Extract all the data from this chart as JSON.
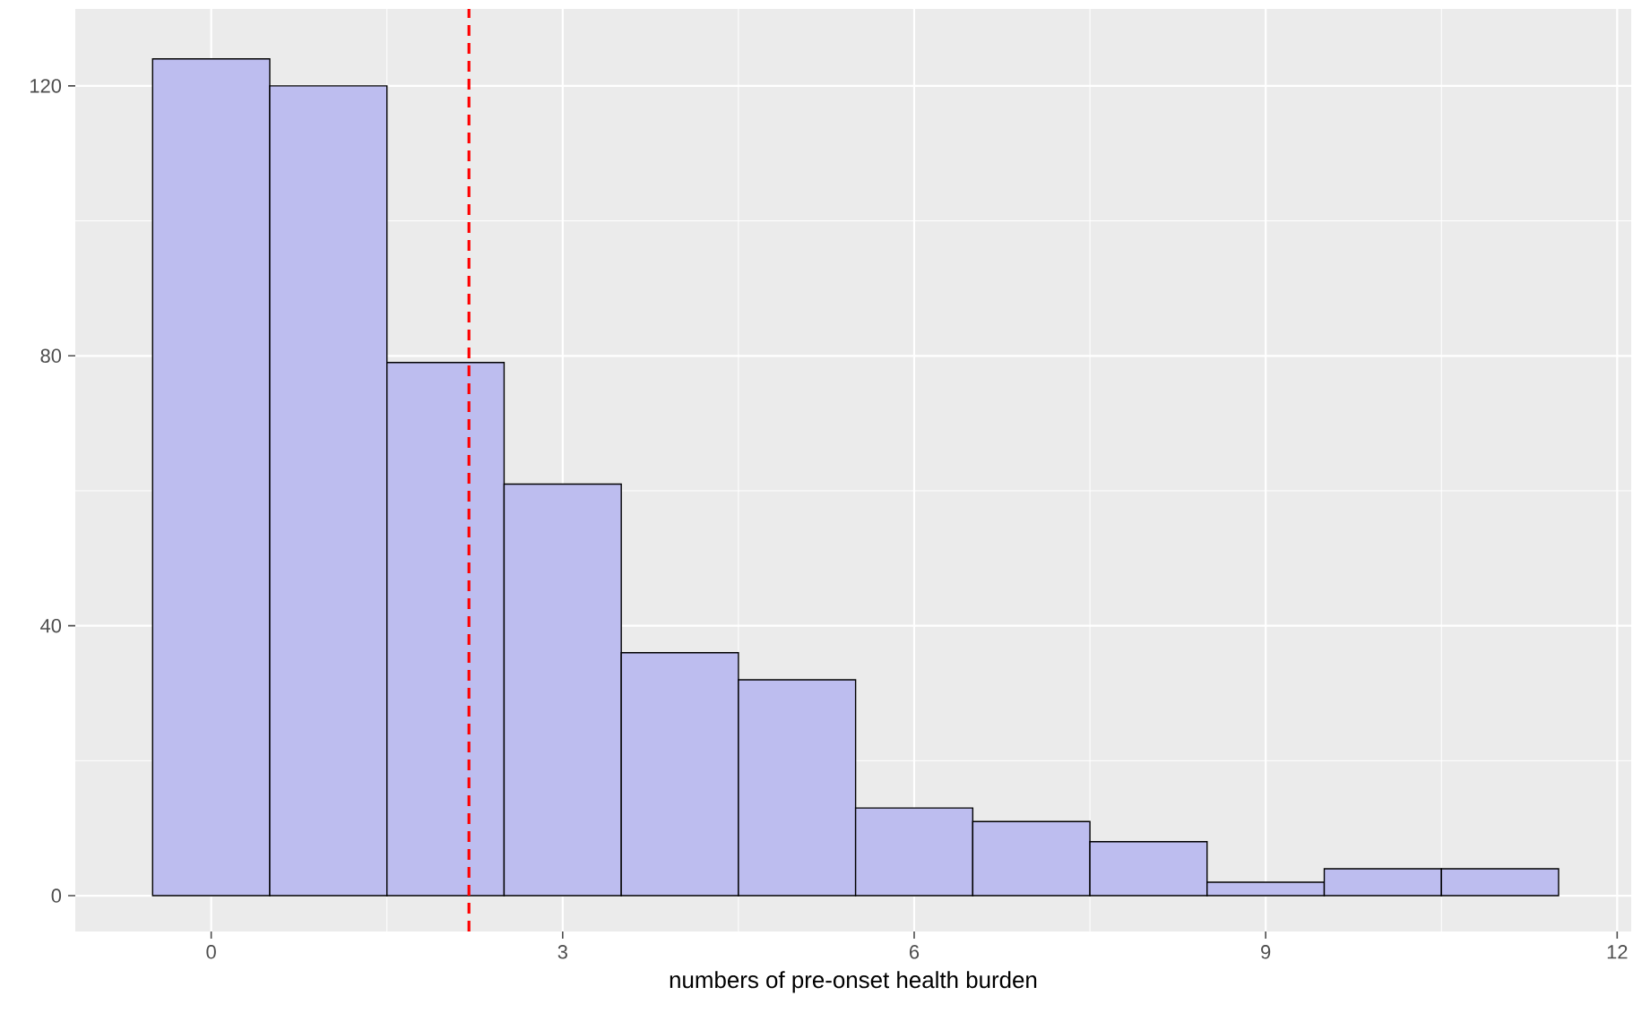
{
  "chart_data": {
    "type": "histogram",
    "xlabel": "numbers of pre-onset health burden",
    "bins": [
      -0.5,
      0.5,
      1.5,
      2.5,
      3.5,
      4.5,
      5.5,
      6.5,
      7.5,
      8.5,
      9.5,
      10.5,
      11.5
    ],
    "values": [
      124,
      120,
      79,
      61,
      36,
      32,
      13,
      11,
      8,
      2,
      4,
      4
    ],
    "color": "#bdbdef",
    "xlim": [
      -1.16,
      12.12
    ],
    "ylim": [
      -5.3,
      131.4
    ],
    "xticks": [
      0,
      3,
      6,
      9,
      12
    ],
    "yticks": [
      0,
      40,
      80,
      120
    ],
    "grid": true,
    "ref_lines": [
      {
        "axis": "x",
        "value": 2.2,
        "color": "#ff0000",
        "line_style": "dashed"
      }
    ]
  }
}
